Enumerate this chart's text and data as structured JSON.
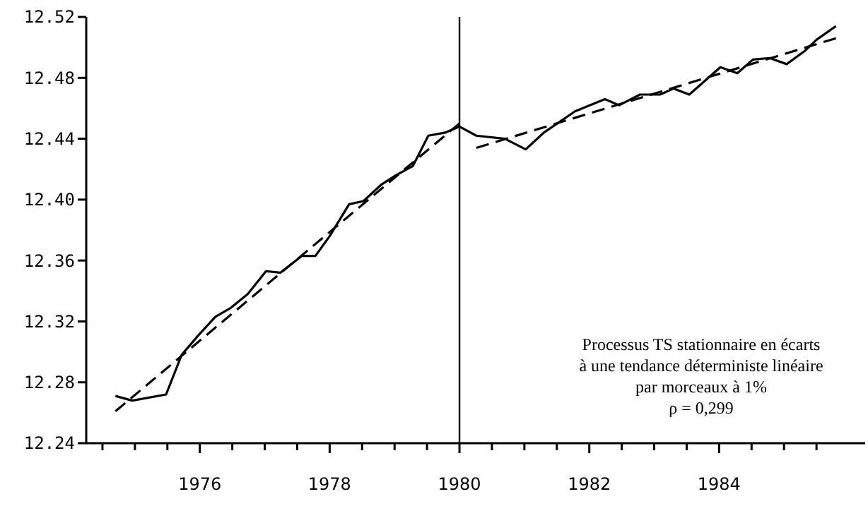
{
  "chart_data": {
    "type": "line",
    "xlim": [
      1974.25,
      1986.25
    ],
    "ylim": [
      12.24,
      12.52
    ],
    "xticks": [
      {
        "value": 1974.5,
        "label": null
      },
      {
        "value": 1975,
        "label": null
      },
      {
        "value": 1975.5,
        "label": null
      },
      1976,
      {
        "value": 1976.5,
        "label": null
      },
      {
        "value": 1977,
        "label": null
      },
      {
        "value": 1977.5,
        "label": null
      },
      1978,
      {
        "value": 1978.5,
        "label": null
      },
      {
        "value": 1979,
        "label": null
      },
      {
        "value": 1979.5,
        "label": null
      },
      1980,
      {
        "value": 1980.5,
        "label": null
      },
      {
        "value": 1981,
        "label": null
      },
      {
        "value": 1981.5,
        "label": null
      },
      1982,
      {
        "value": 1982.5,
        "label": null
      },
      {
        "value": 1983,
        "label": null
      },
      {
        "value": 1983.5,
        "label": null
      },
      1984,
      {
        "value": 1984.5,
        "label": null
      },
      {
        "value": 1985,
        "label": null
      },
      {
        "value": 1985.5,
        "label": null
      }
    ],
    "yticks": [
      12.24,
      12.28,
      12.32,
      12.36,
      {
        "value": 12.4,
        "label": "12.40"
      },
      12.44,
      12.48,
      12.52
    ],
    "ref_lines": [
      {
        "axis": "x",
        "value": 1980,
        "color": "#000000"
      }
    ],
    "annotations": [
      "Processus TS stationnaire en écarts\nà une tendance déterministe linéaire\npar morceaux à 1%\nρ = 0,299"
    ],
    "series": [
      {
        "color": "#000000",
        "line_style": "solid",
        "x": [
          1974.7,
          1974.96,
          1975.48,
          1975.72,
          1975.98,
          1976.24,
          1976.48,
          1976.74,
          1977.02,
          1977.24,
          1977.57,
          1977.78,
          1978.0,
          1978.3,
          1978.52,
          1978.8,
          1979.02,
          1979.28,
          1979.52,
          1979.78,
          1980.0,
          1980.26,
          1980.7,
          1981.02,
          1981.3,
          1981.78,
          1982.24,
          1982.46,
          1982.78,
          1983.09,
          1983.3,
          1983.54,
          1984.02,
          1984.28,
          1984.52,
          1984.78,
          1985.04,
          1985.33,
          1985.5,
          1985.8
        ],
        "values": [
          12.271,
          12.268,
          12.272,
          12.298,
          12.311,
          12.323,
          12.329,
          12.338,
          12.353,
          12.352,
          12.363,
          12.363,
          12.376,
          12.397,
          12.399,
          12.41,
          12.416,
          12.422,
          12.442,
          12.444,
          12.448,
          12.442,
          12.44,
          12.433,
          12.444,
          12.458,
          12.466,
          12.462,
          12.469,
          12.469,
          12.473,
          12.469,
          12.487,
          12.483,
          12.492,
          12.493,
          12.489,
          12.498,
          12.505,
          12.514
        ]
      },
      {
        "color": "#000000",
        "line_style": "dashed",
        "x": [
          1974.7,
          1980.0
        ],
        "values": [
          12.261,
          12.45
        ]
      },
      {
        "color": "#000000",
        "line_style": "dashed",
        "x": [
          1980.26,
          1985.8
        ],
        "values": [
          12.434,
          12.506
        ]
      }
    ]
  }
}
